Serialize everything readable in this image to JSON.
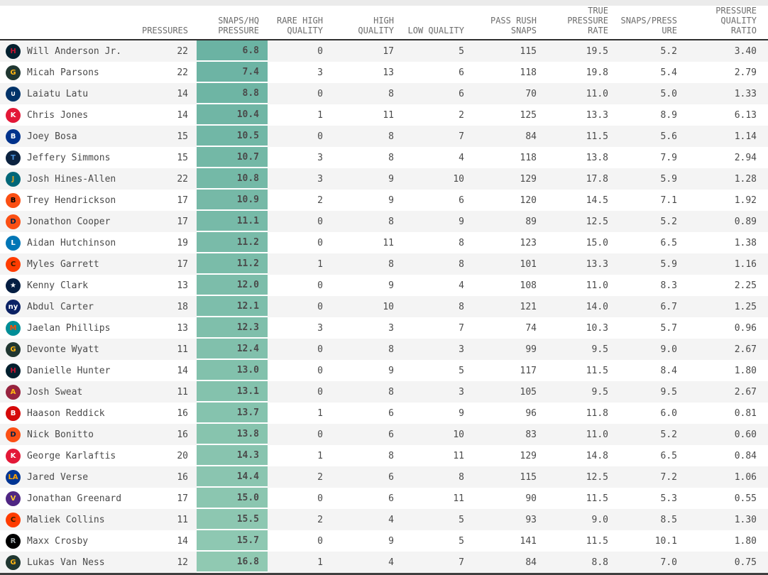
{
  "colors": {
    "top_strip": "#ebebeb",
    "header_text": "#6e6e6e",
    "header_border": "#2e2e2e",
    "row_alt": "#f4f4f4",
    "row_text": "#4a4a4a",
    "bottom_border": "#3f3f3f",
    "highlight_top": "#6bb3a3",
    "highlight_bottom": "#90c9b2"
  },
  "columns": [
    {
      "id": "player",
      "label": ""
    },
    {
      "id": "pressures",
      "label": "PRESSURES"
    },
    {
      "id": "snaps_per_hq_pressure",
      "label": "SNAPS/HQ\nPRESSURE"
    },
    {
      "id": "rare_high_quality",
      "label": "RARE HIGH\nQUALITY"
    },
    {
      "id": "high_quality",
      "label": "HIGH\nQUALITY"
    },
    {
      "id": "low_quality",
      "label": "LOW QUALITY"
    },
    {
      "id": "pass_rush_snaps",
      "label": "PASS RUSH\nSNAPS"
    },
    {
      "id": "true_pressure_rate",
      "label": "TRUE\nPRESSURE\nRATE"
    },
    {
      "id": "snaps_per_pressure",
      "label": "SNAPS/PRESS\nURE"
    },
    {
      "id": "pressure_quality_ratio",
      "label": "PRESSURE\nQUALITY\nRATIO"
    }
  ],
  "team_logos": {
    "texans": {
      "bg": "#03202f",
      "fg": "#c41230",
      "glyph": "H"
    },
    "packers": {
      "bg": "#203731",
      "fg": "#ffb612",
      "glyph": "G"
    },
    "colts": {
      "bg": "#013369",
      "fg": "#ffffff",
      "glyph": "∪"
    },
    "chiefs": {
      "bg": "#e31837",
      "fg": "#ffffff",
      "glyph": "K"
    },
    "bills": {
      "bg": "#00338d",
      "fg": "#ffffff",
      "glyph": "B"
    },
    "titans": {
      "bg": "#0c2340",
      "fg": "#4b92db",
      "glyph": "T"
    },
    "jaguars": {
      "bg": "#006778",
      "fg": "#d7a22a",
      "glyph": "J"
    },
    "bengals": {
      "bg": "#fb4f14",
      "fg": "#000000",
      "glyph": "B"
    },
    "broncos": {
      "bg": "#fb4f14",
      "fg": "#002244",
      "glyph": "D"
    },
    "lions": {
      "bg": "#0076b6",
      "fg": "#ffffff",
      "glyph": "L"
    },
    "browns": {
      "bg": "#ff3c00",
      "fg": "#311d00",
      "glyph": "C"
    },
    "cowboys": {
      "bg": "#041e42",
      "fg": "#ffffff",
      "glyph": "★"
    },
    "giants": {
      "bg": "#0b2265",
      "fg": "#ffffff",
      "glyph": "ny"
    },
    "dolphins": {
      "bg": "#008e97",
      "fg": "#fc4c02",
      "glyph": "M"
    },
    "cardinals": {
      "bg": "#97233f",
      "fg": "#ffb612",
      "glyph": "A"
    },
    "buccaneers": {
      "bg": "#d50a0a",
      "fg": "#ffffff",
      "glyph": "B"
    },
    "rams": {
      "bg": "#003594",
      "fg": "#ffa300",
      "glyph": "LA"
    },
    "vikings": {
      "bg": "#4f2683",
      "fg": "#ffc62f",
      "glyph": "V"
    },
    "raiders": {
      "bg": "#000000",
      "fg": "#a5acaf",
      "glyph": "R"
    }
  },
  "rows": [
    {
      "player": "Will Anderson Jr.",
      "team": "texans",
      "pressures": "22",
      "snaps_per_hq_pressure": "6.8",
      "rare_high_quality": "0",
      "high_quality": "17",
      "low_quality": "5",
      "pass_rush_snaps": "115",
      "true_pressure_rate": "19.5",
      "snaps_per_pressure": "5.2",
      "pressure_quality_ratio": "3.40",
      "highlight": "#6bb3a3"
    },
    {
      "player": "Micah Parsons",
      "team": "packers",
      "pressures": "22",
      "snaps_per_hq_pressure": "7.4",
      "rare_high_quality": "3",
      "high_quality": "13",
      "low_quality": "6",
      "pass_rush_snaps": "118",
      "true_pressure_rate": "19.8",
      "snaps_per_pressure": "5.4",
      "pressure_quality_ratio": "2.79",
      "highlight": "#6db4a4"
    },
    {
      "player": "Laiatu Latu",
      "team": "colts",
      "pressures": "14",
      "snaps_per_hq_pressure": "8.8",
      "rare_high_quality": "0",
      "high_quality": "8",
      "low_quality": "6",
      "pass_rush_snaps": "70",
      "true_pressure_rate": "11.0",
      "snaps_per_pressure": "5.0",
      "pressure_quality_ratio": "1.33",
      "highlight": "#6eb5a4"
    },
    {
      "player": "Chris Jones",
      "team": "chiefs",
      "pressures": "14",
      "snaps_per_hq_pressure": "10.4",
      "rare_high_quality": "1",
      "high_quality": "11",
      "low_quality": "2",
      "pass_rush_snaps": "125",
      "true_pressure_rate": "13.3",
      "snaps_per_pressure": "8.9",
      "pressure_quality_ratio": "6.13",
      "highlight": "#70b6a5"
    },
    {
      "player": "Joey Bosa",
      "team": "bills",
      "pressures": "15",
      "snaps_per_hq_pressure": "10.5",
      "rare_high_quality": "0",
      "high_quality": "8",
      "low_quality": "7",
      "pass_rush_snaps": "84",
      "true_pressure_rate": "11.5",
      "snaps_per_pressure": "5.6",
      "pressure_quality_ratio": "1.14",
      "highlight": "#71b7a6"
    },
    {
      "player": "Jeffery Simmons",
      "team": "titans",
      "pressures": "15",
      "snaps_per_hq_pressure": "10.7",
      "rare_high_quality": "3",
      "high_quality": "8",
      "low_quality": "4",
      "pass_rush_snaps": "118",
      "true_pressure_rate": "13.8",
      "snaps_per_pressure": "7.9",
      "pressure_quality_ratio": "2.94",
      "highlight": "#73b8a6"
    },
    {
      "player": "Josh Hines-Allen",
      "team": "jaguars",
      "pressures": "22",
      "snaps_per_hq_pressure": "10.8",
      "rare_high_quality": "3",
      "high_quality": "9",
      "low_quality": "10",
      "pass_rush_snaps": "129",
      "true_pressure_rate": "17.8",
      "snaps_per_pressure": "5.9",
      "pressure_quality_ratio": "1.28",
      "highlight": "#74b9a7"
    },
    {
      "player": "Trey Hendrickson",
      "team": "bengals",
      "pressures": "17",
      "snaps_per_hq_pressure": "10.9",
      "rare_high_quality": "2",
      "high_quality": "9",
      "low_quality": "6",
      "pass_rush_snaps": "120",
      "true_pressure_rate": "14.5",
      "snaps_per_pressure": "7.1",
      "pressure_quality_ratio": "1.92",
      "highlight": "#76b9a7"
    },
    {
      "player": "Jonathon Cooper",
      "team": "broncos",
      "pressures": "17",
      "snaps_per_hq_pressure": "11.1",
      "rare_high_quality": "0",
      "high_quality": "8",
      "low_quality": "9",
      "pass_rush_snaps": "89",
      "true_pressure_rate": "12.5",
      "snaps_per_pressure": "5.2",
      "pressure_quality_ratio": "0.89",
      "highlight": "#77baa8"
    },
    {
      "player": "Aidan Hutchinson",
      "team": "lions",
      "pressures": "19",
      "snaps_per_hq_pressure": "11.2",
      "rare_high_quality": "0",
      "high_quality": "11",
      "low_quality": "8",
      "pass_rush_snaps": "123",
      "true_pressure_rate": "15.0",
      "snaps_per_pressure": "6.5",
      "pressure_quality_ratio": "1.38",
      "highlight": "#79bba9"
    },
    {
      "player": "Myles Garrett",
      "team": "browns",
      "pressures": "17",
      "snaps_per_hq_pressure": "11.2",
      "rare_high_quality": "1",
      "high_quality": "8",
      "low_quality": "8",
      "pass_rush_snaps": "101",
      "true_pressure_rate": "13.3",
      "snaps_per_pressure": "5.9",
      "pressure_quality_ratio": "1.16",
      "highlight": "#7abca9"
    },
    {
      "player": "Kenny Clark",
      "team": "cowboys",
      "pressures": "13",
      "snaps_per_hq_pressure": "12.0",
      "rare_high_quality": "0",
      "high_quality": "9",
      "low_quality": "4",
      "pass_rush_snaps": "108",
      "true_pressure_rate": "11.0",
      "snaps_per_pressure": "8.3",
      "pressure_quality_ratio": "2.25",
      "highlight": "#7cbdaa"
    },
    {
      "player": "Abdul Carter",
      "team": "giants",
      "pressures": "18",
      "snaps_per_hq_pressure": "12.1",
      "rare_high_quality": "0",
      "high_quality": "10",
      "low_quality": "8",
      "pass_rush_snaps": "121",
      "true_pressure_rate": "14.0",
      "snaps_per_pressure": "6.7",
      "pressure_quality_ratio": "1.25",
      "highlight": "#7dbeab"
    },
    {
      "player": "Jaelan Phillips",
      "team": "dolphins",
      "pressures": "13",
      "snaps_per_hq_pressure": "12.3",
      "rare_high_quality": "3",
      "high_quality": "3",
      "low_quality": "7",
      "pass_rush_snaps": "74",
      "true_pressure_rate": "10.3",
      "snaps_per_pressure": "5.7",
      "pressure_quality_ratio": "0.96",
      "highlight": "#7fbfab"
    },
    {
      "player": "Devonte Wyatt",
      "team": "packers",
      "pressures": "11",
      "snaps_per_hq_pressure": "12.4",
      "rare_high_quality": "0",
      "high_quality": "8",
      "low_quality": "3",
      "pass_rush_snaps": "99",
      "true_pressure_rate": "9.5",
      "snaps_per_pressure": "9.0",
      "pressure_quality_ratio": "2.67",
      "highlight": "#81c0ac"
    },
    {
      "player": "Danielle Hunter",
      "team": "texans",
      "pressures": "14",
      "snaps_per_hq_pressure": "13.0",
      "rare_high_quality": "0",
      "high_quality": "9",
      "low_quality": "5",
      "pass_rush_snaps": "117",
      "true_pressure_rate": "11.5",
      "snaps_per_pressure": "8.4",
      "pressure_quality_ratio": "1.80",
      "highlight": "#82c1ac"
    },
    {
      "player": "Josh Sweat",
      "team": "cardinals",
      "pressures": "11",
      "snaps_per_hq_pressure": "13.1",
      "rare_high_quality": "0",
      "high_quality": "8",
      "low_quality": "3",
      "pass_rush_snaps": "105",
      "true_pressure_rate": "9.5",
      "snaps_per_pressure": "9.5",
      "pressure_quality_ratio": "2.67",
      "highlight": "#84c2ad"
    },
    {
      "player": "Haason Reddick",
      "team": "buccaneers",
      "pressures": "16",
      "snaps_per_hq_pressure": "13.7",
      "rare_high_quality": "1",
      "high_quality": "6",
      "low_quality": "9",
      "pass_rush_snaps": "96",
      "true_pressure_rate": "11.8",
      "snaps_per_pressure": "6.0",
      "pressure_quality_ratio": "0.81",
      "highlight": "#85c3ae"
    },
    {
      "player": "Nick Bonitto",
      "team": "broncos",
      "pressures": "16",
      "snaps_per_hq_pressure": "13.8",
      "rare_high_quality": "0",
      "high_quality": "6",
      "low_quality": "10",
      "pass_rush_snaps": "83",
      "true_pressure_rate": "11.0",
      "snaps_per_pressure": "5.2",
      "pressure_quality_ratio": "0.60",
      "highlight": "#87c4ae"
    },
    {
      "player": "George Karlaftis",
      "team": "chiefs",
      "pressures": "20",
      "snaps_per_hq_pressure": "14.3",
      "rare_high_quality": "1",
      "high_quality": "8",
      "low_quality": "11",
      "pass_rush_snaps": "129",
      "true_pressure_rate": "14.8",
      "snaps_per_pressure": "6.5",
      "pressure_quality_ratio": "0.84",
      "highlight": "#88c4af"
    },
    {
      "player": "Jared Verse",
      "team": "rams",
      "pressures": "16",
      "snaps_per_hq_pressure": "14.4",
      "rare_high_quality": "2",
      "high_quality": "6",
      "low_quality": "8",
      "pass_rush_snaps": "115",
      "true_pressure_rate": "12.5",
      "snaps_per_pressure": "7.2",
      "pressure_quality_ratio": "1.06",
      "highlight": "#8ac5b0"
    },
    {
      "player": "Jonathan Greenard",
      "team": "vikings",
      "pressures": "17",
      "snaps_per_hq_pressure": "15.0",
      "rare_high_quality": "0",
      "high_quality": "6",
      "low_quality": "11",
      "pass_rush_snaps": "90",
      "true_pressure_rate": "11.5",
      "snaps_per_pressure": "5.3",
      "pressure_quality_ratio": "0.55",
      "highlight": "#8bc6b0"
    },
    {
      "player": "Maliek Collins",
      "team": "browns",
      "pressures": "11",
      "snaps_per_hq_pressure": "15.5",
      "rare_high_quality": "2",
      "high_quality": "4",
      "low_quality": "5",
      "pass_rush_snaps": "93",
      "true_pressure_rate": "9.0",
      "snaps_per_pressure": "8.5",
      "pressure_quality_ratio": "1.30",
      "highlight": "#8dc7b1"
    },
    {
      "player": "Maxx Crosby",
      "team": "raiders",
      "pressures": "14",
      "snaps_per_hq_pressure": "15.7",
      "rare_high_quality": "0",
      "high_quality": "9",
      "low_quality": "5",
      "pass_rush_snaps": "141",
      "true_pressure_rate": "11.5",
      "snaps_per_pressure": "10.1",
      "pressure_quality_ratio": "1.80",
      "highlight": "#8ec8b2"
    },
    {
      "player": "Lukas Van Ness",
      "team": "packers",
      "pressures": "12",
      "snaps_per_hq_pressure": "16.8",
      "rare_high_quality": "1",
      "high_quality": "4",
      "low_quality": "7",
      "pass_rush_snaps": "84",
      "true_pressure_rate": "8.8",
      "snaps_per_pressure": "7.0",
      "pressure_quality_ratio": "0.75",
      "highlight": "#90c9b2"
    }
  ]
}
